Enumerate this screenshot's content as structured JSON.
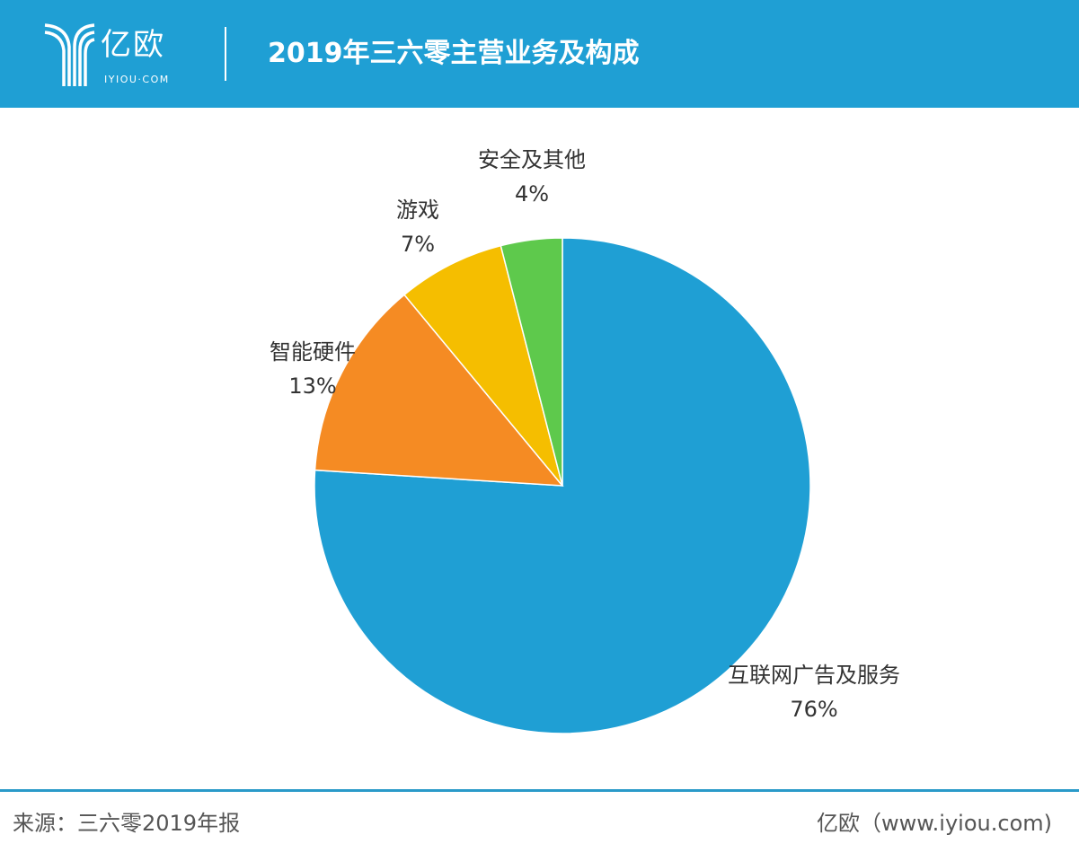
{
  "header": {
    "logo_cn": "亿欧",
    "logo_en": "IYIOU·COM",
    "title": "2019年三六零主营业务及构成"
  },
  "chart_data": {
    "type": "pie",
    "title": "2019年三六零主营业务及构成",
    "start": "top",
    "direction": "clockwise",
    "slices": [
      {
        "label": "互联网广告及服务",
        "value": 76,
        "display": "76%",
        "color": "#1f9fd4"
      },
      {
        "label": "智能硬件",
        "value": 13,
        "display": "13%",
        "color": "#f58b23"
      },
      {
        "label": "游戏",
        "value": 7,
        "display": "7%",
        "color": "#f5be00"
      },
      {
        "label": "安全及其他",
        "value": 4,
        "display": "4%",
        "color": "#5ec94c"
      }
    ]
  },
  "footer": {
    "source": "来源：三六零2019年报",
    "credit": "亿欧（www.iyiou.com)"
  }
}
